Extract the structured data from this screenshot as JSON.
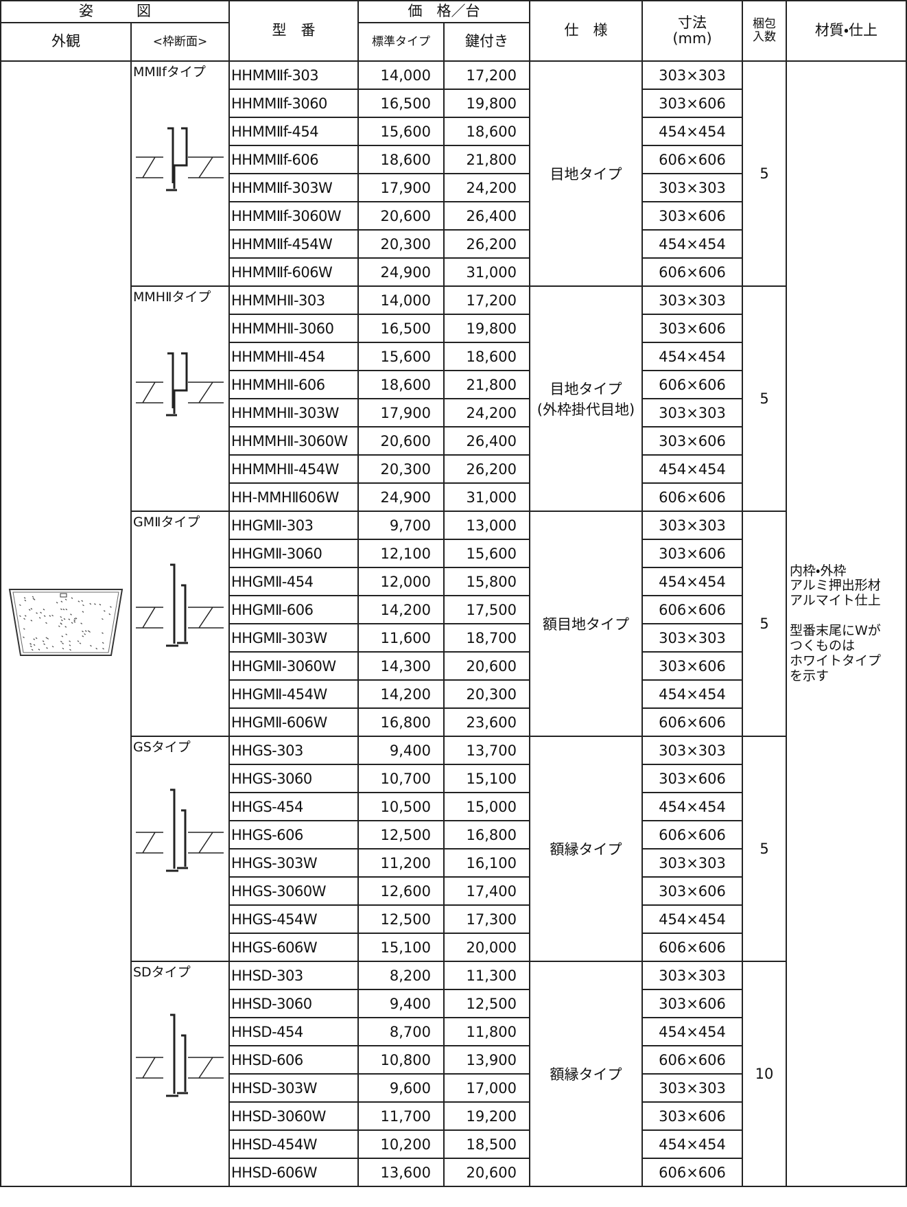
{
  "header": {
    "figure": "姿　　　図",
    "model": "型　番",
    "price": "価　格／台",
    "spec": "仕　様",
    "size": "寸法\n(mm)",
    "pack": "梱包\n入数",
    "material": "材質・仕上",
    "exterior": "外観",
    "section": "<枠断面>",
    "standard": "標準タイプ",
    "locked": "鍵付き"
  },
  "material": [
    "内枠・外枠\nアルミ押出形材\nアルマイト仕上",
    "型番末尾にWが\nつくものは\nホワイトタイプ\nを示す"
  ],
  "groups": [
    {
      "type": "MMⅡfタイプ",
      "spec": "目地タイプ",
      "pack": "5",
      "rows": [
        [
          "HHMMⅡf-303",
          "14,000",
          "17,200",
          "303×303"
        ],
        [
          "HHMMⅡf-3060",
          "16,500",
          "19,800",
          "303×606"
        ],
        [
          "HHMMⅡf-454",
          "15,600",
          "18,600",
          "454×454"
        ],
        [
          "HHMMⅡf-606",
          "18,600",
          "21,800",
          "606×606"
        ],
        [
          "HHMMⅡf-303W",
          "17,900",
          "24,200",
          "303×303"
        ],
        [
          "HHMMⅡf-3060W",
          "20,600",
          "26,400",
          "303×606"
        ],
        [
          "HHMMⅡf-454W",
          "20,300",
          "26,200",
          "454×454"
        ],
        [
          "HHMMⅡf-606W",
          "24,900",
          "31,000",
          "606×606"
        ]
      ]
    },
    {
      "type": "MMHⅡタイプ",
      "spec": "目地タイプ\n(外枠掛代目地)",
      "pack": "5",
      "rows": [
        [
          "HHMMHⅡ-303",
          "14,000",
          "17,200",
          "303×303"
        ],
        [
          "HHMMHⅡ-3060",
          "16,500",
          "19,800",
          "303×606"
        ],
        [
          "HHMMHⅡ-454",
          "15,600",
          "18,600",
          "454×454"
        ],
        [
          "HHMMHⅡ-606",
          "18,600",
          "21,800",
          "606×606"
        ],
        [
          "HHMMHⅡ-303W",
          "17,900",
          "24,200",
          "303×303"
        ],
        [
          "HHMMHⅡ-3060W",
          "20,600",
          "26,400",
          "303×606"
        ],
        [
          "HHMMHⅡ-454W",
          "20,300",
          "26,200",
          "454×454"
        ],
        [
          "HH-MMHⅡ606W",
          "24,900",
          "31,000",
          "606×606"
        ]
      ]
    },
    {
      "type": "GMⅡタイプ",
      "spec": "額目地タイプ",
      "pack": "5",
      "rows": [
        [
          "HHGMⅡ-303",
          "9,700",
          "13,000",
          "303×303"
        ],
        [
          "HHGMⅡ-3060",
          "12,100",
          "15,600",
          "303×606"
        ],
        [
          "HHGMⅡ-454",
          "12,000",
          "15,800",
          "454×454"
        ],
        [
          "HHGMⅡ-606",
          "14,200",
          "17,500",
          "606×606"
        ],
        [
          "HHGMⅡ-303W",
          "11,600",
          "18,700",
          "303×303"
        ],
        [
          "HHGMⅡ-3060W",
          "14,300",
          "20,600",
          "303×606"
        ],
        [
          "HHGMⅡ-454W",
          "14,200",
          "20,300",
          "454×454"
        ],
        [
          "HHGMⅡ-606W",
          "16,800",
          "23,600",
          "606×606"
        ]
      ]
    },
    {
      "type": "GSタイプ",
      "spec": "額縁タイプ",
      "pack": "5",
      "rows": [
        [
          "HHGS-303",
          "9,400",
          "13,700",
          "303×303"
        ],
        [
          "HHGS-3060",
          "10,700",
          "15,100",
          "303×606"
        ],
        [
          "HHGS-454",
          "10,500",
          "15,000",
          "454×454"
        ],
        [
          "HHGS-606",
          "12,500",
          "16,800",
          "606×606"
        ],
        [
          "HHGS-303W",
          "11,200",
          "16,100",
          "303×303"
        ],
        [
          "HHGS-3060W",
          "12,600",
          "17,400",
          "303×606"
        ],
        [
          "HHGS-454W",
          "12,500",
          "17,300",
          "454×454"
        ],
        [
          "HHGS-606W",
          "15,100",
          "20,000",
          "606×606"
        ]
      ]
    },
    {
      "type": "SDタイプ",
      "spec": "額縁タイプ",
      "pack": "10",
      "rows": [
        [
          "HHSD-303",
          "8,200",
          "11,300",
          "303×303"
        ],
        [
          "HHSD-3060",
          "9,400",
          "12,500",
          "303×606"
        ],
        [
          "HHSD-454",
          "8,700",
          "11,800",
          "454×454"
        ],
        [
          "HHSD-606",
          "10,800",
          "13,900",
          "606×606"
        ],
        [
          "HHSD-303W",
          "9,600",
          "17,000",
          "303×303"
        ],
        [
          "HHSD-3060W",
          "11,700",
          "19,200",
          "303×606"
        ],
        [
          "HHSD-454W",
          "10,200",
          "18,500",
          "454×454"
        ],
        [
          "HHSD-606W",
          "13,600",
          "20,600",
          "606×606"
        ]
      ]
    }
  ]
}
